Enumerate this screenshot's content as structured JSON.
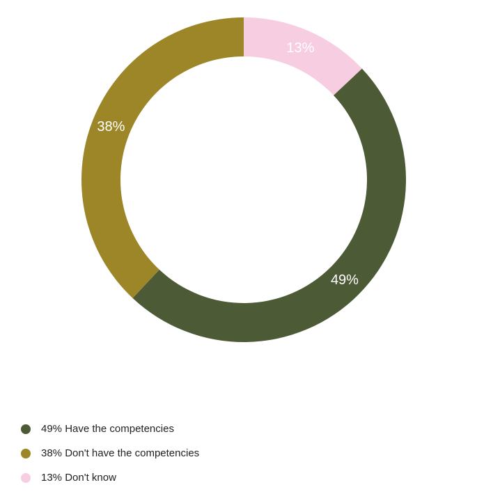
{
  "chart_data": {
    "type": "pie",
    "donut": true,
    "legend_position": "bottom-left",
    "slices": [
      {
        "label": "13%",
        "value": 13,
        "legend": "13% Don't know",
        "color": "#f7cde2"
      },
      {
        "label": "49%",
        "value": 49,
        "legend": "49% Have the competencies",
        "color": "#4c5a36"
      },
      {
        "label": "38%",
        "value": 38,
        "legend": "38% Don't have the competencies",
        "color": "#9c8628"
      }
    ],
    "legend_order": [
      1,
      2,
      0
    ]
  }
}
